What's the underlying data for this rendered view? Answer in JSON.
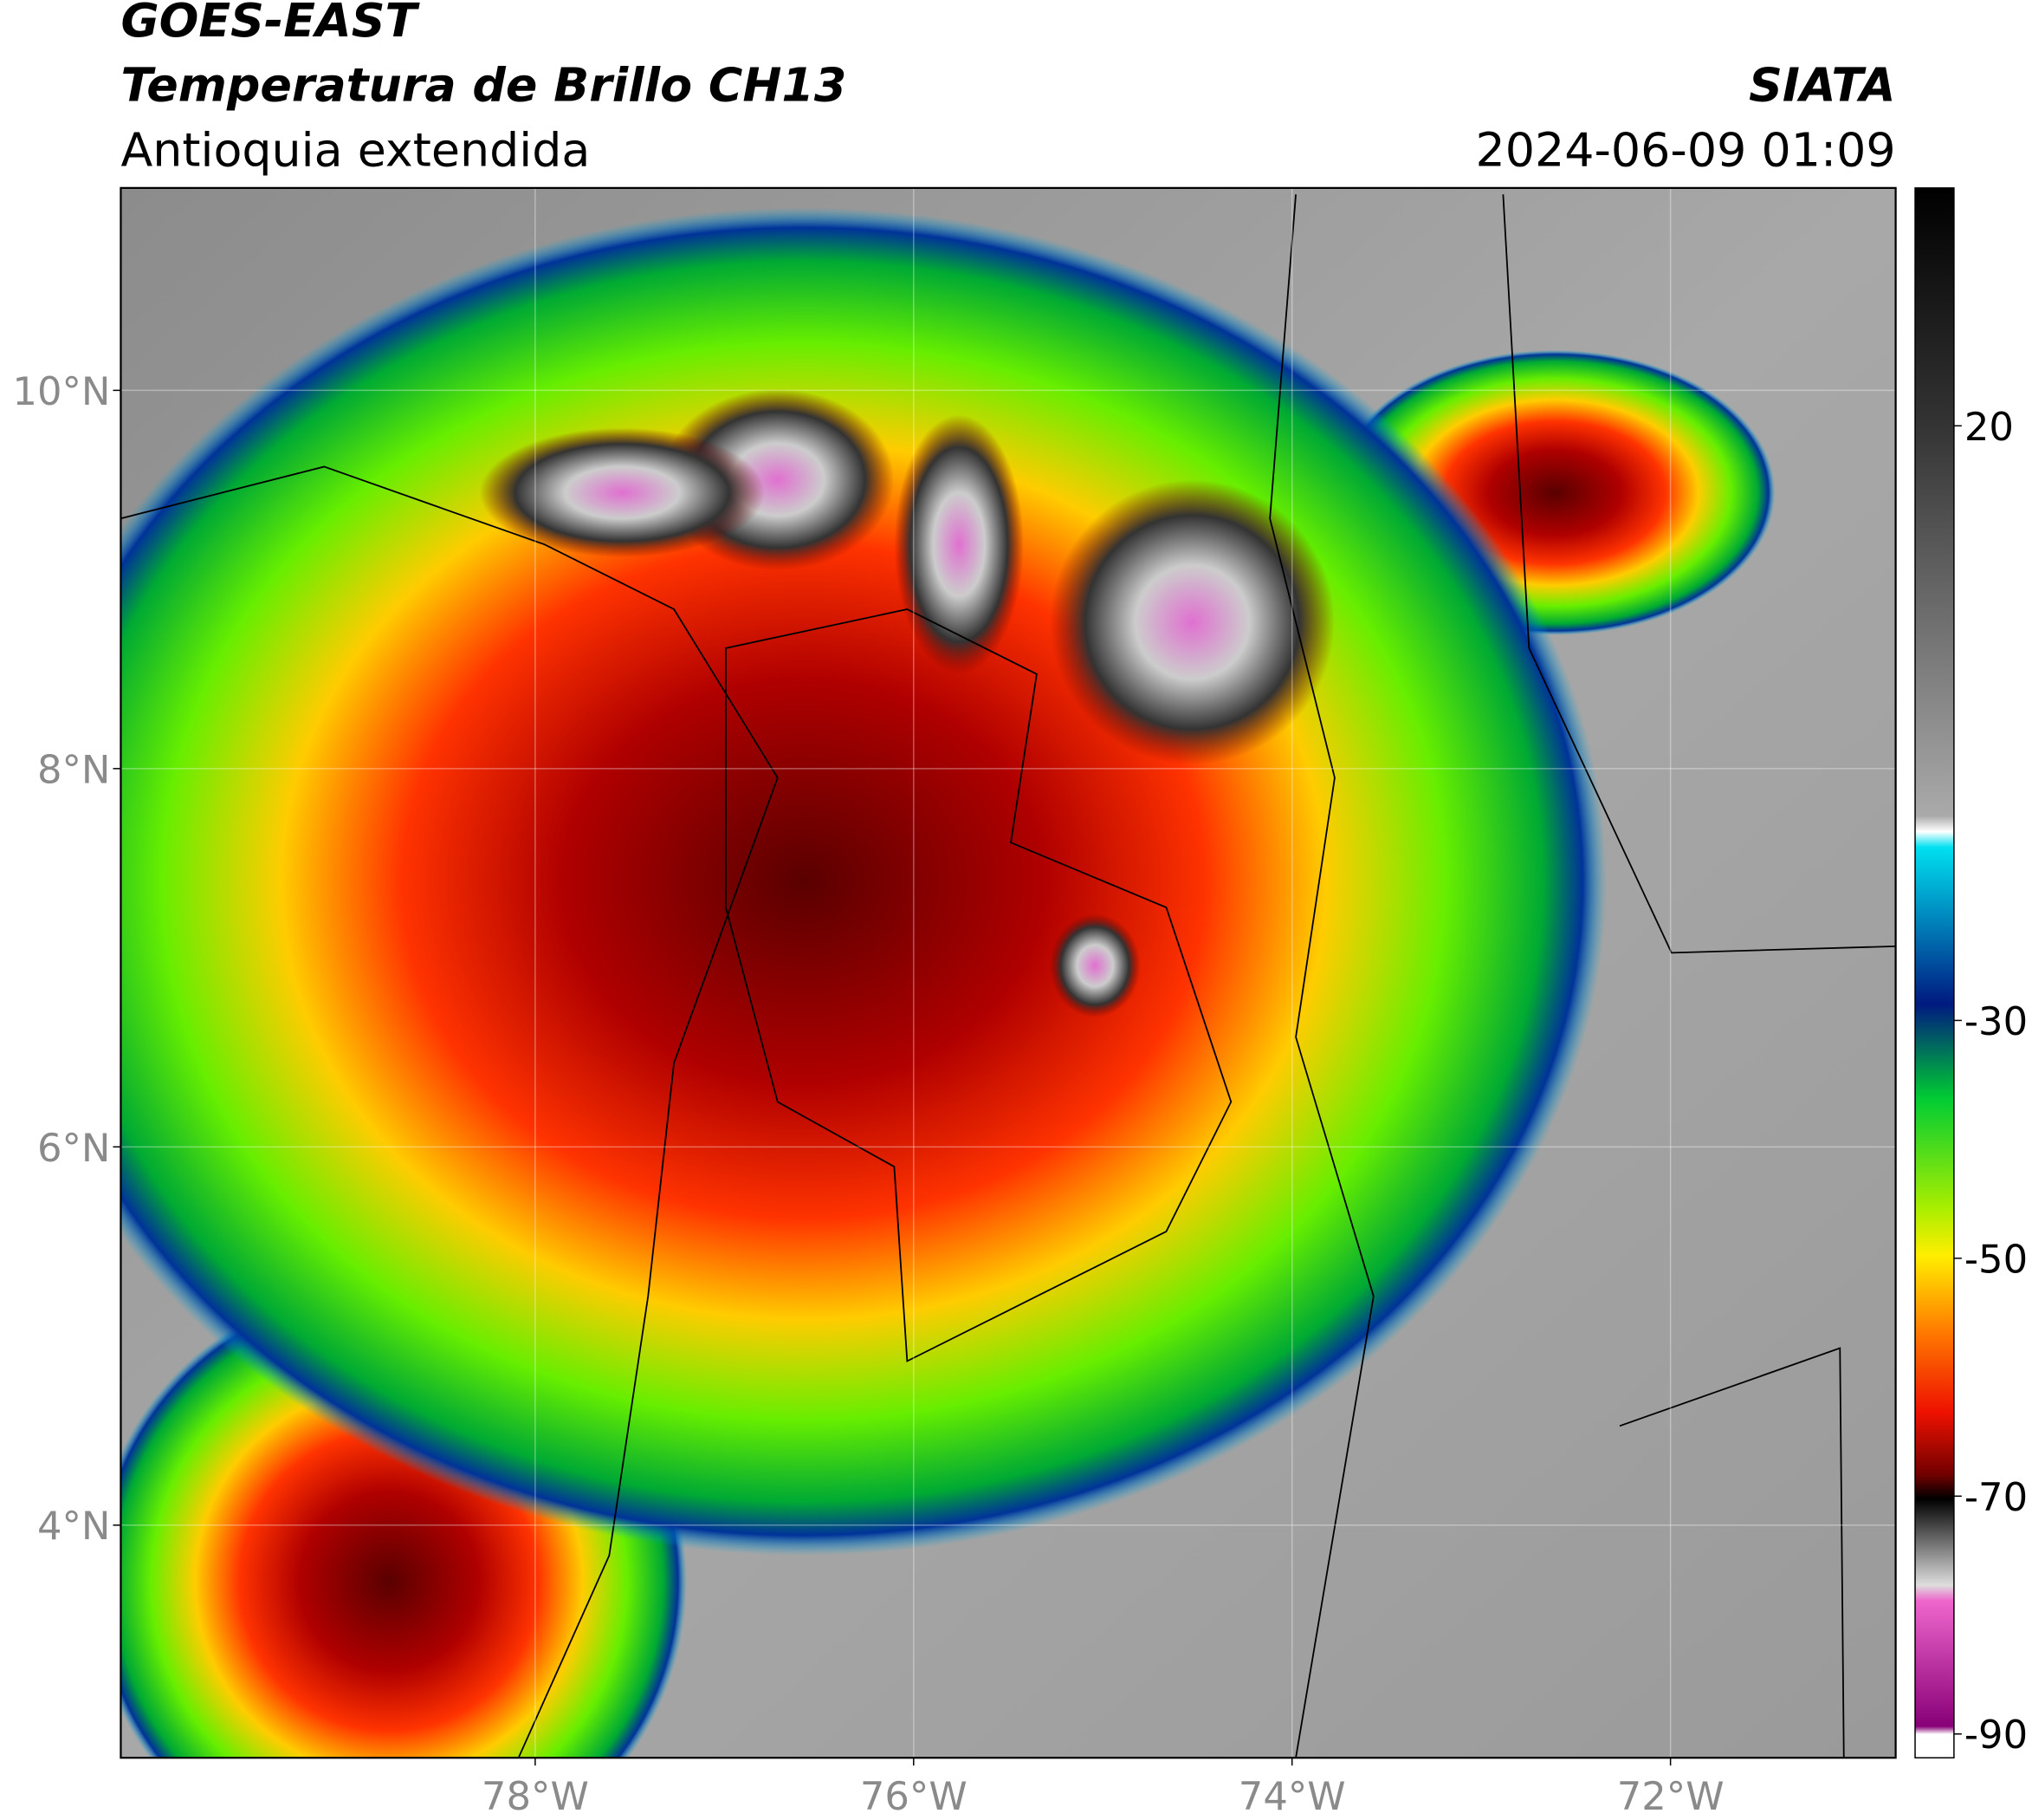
{
  "header": {
    "satellite": "GOES-EAST",
    "product": "Temperatura de Brillo CH13",
    "region": "Antioquia extendida",
    "agency": "SIATA",
    "datetime": "2024-06-09 01:09"
  },
  "map": {
    "lat_range": [
      2.77,
      11.07
    ],
    "lon_range": [
      -80.19,
      -70.81
    ],
    "lat_ticks": [
      {
        "value": 10,
        "label": "10°N"
      },
      {
        "value": 8,
        "label": "8°N"
      },
      {
        "value": 6,
        "label": "6°N"
      },
      {
        "value": 4,
        "label": "4°N"
      }
    ],
    "lon_ticks": [
      {
        "value": -78,
        "label": "78°W"
      },
      {
        "value": -76,
        "label": "76°W"
      },
      {
        "value": -74,
        "label": "74°W"
      },
      {
        "value": -72,
        "label": "72°W"
      }
    ]
  },
  "colorbar": {
    "lim": [
      -92,
      40
    ],
    "ticks": [
      20,
      -30,
      -50,
      -70,
      -90
    ]
  }
}
